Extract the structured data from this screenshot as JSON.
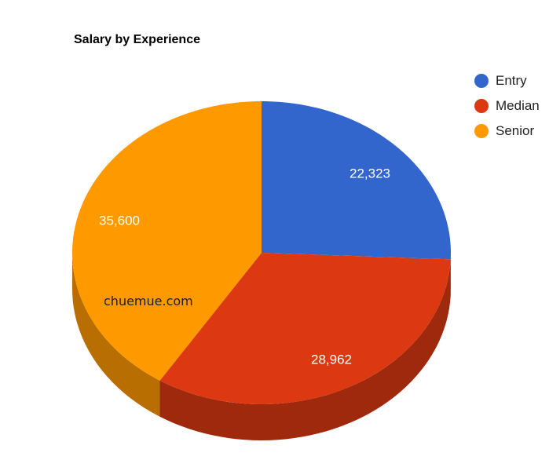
{
  "chart_data": {
    "type": "pie",
    "style": "3d",
    "title": "Salary by Experience",
    "categories": [
      "Entry",
      "Median",
      "Senior"
    ],
    "values": [
      22323,
      28962,
      35600
    ],
    "value_labels": [
      "22,323",
      "28,962",
      "35,600"
    ],
    "colors": [
      "#3366cc",
      "#dc3912",
      "#ff9900"
    ],
    "legend_position": "top-right"
  },
  "watermark": "chuemue.com"
}
